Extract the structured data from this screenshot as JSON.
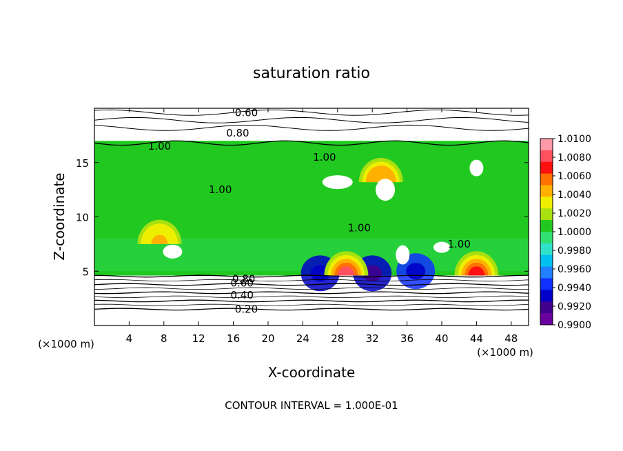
{
  "chart_data": {
    "type": "heatmap",
    "title": "saturation ratio",
    "xlabel": "X-coordinate",
    "ylabel": "Z-coordinate",
    "x_unit": "(×1000 m)",
    "y_unit": "(×1000 m)",
    "xlim": [
      0,
      50
    ],
    "ylim": [
      0,
      20
    ],
    "x_ticks": [
      "4",
      "8",
      "12",
      "16",
      "20",
      "24",
      "28",
      "32",
      "36",
      "40",
      "44",
      "48"
    ],
    "y_ticks": [
      "5",
      "10",
      "15"
    ],
    "footer": "CONTOUR INTERVAL = 1.000E-01",
    "colorbar": {
      "min": 0.99,
      "max": 1.01,
      "labels": [
        "1.0100",
        "1.0080",
        "1.0060",
        "1.0040",
        "1.0020",
        "1.0000",
        "0.9980",
        "0.9960",
        "0.9940",
        "0.9920",
        "0.9900"
      ],
      "colors": [
        "#ff9aa8",
        "#ff5060",
        "#ff1010",
        "#ff7000",
        "#ffb000",
        "#eeee00",
        "#a8e010",
        "#20c820",
        "#30e070",
        "#30e0c8",
        "#00c0f0",
        "#2080ff",
        "#1030ff",
        "#0000c8",
        "#40008c",
        "#6a00a0"
      ]
    },
    "contour_levels": [
      0.2,
      0.4,
      0.6,
      0.8,
      1.0
    ],
    "contour_labels": [
      "0.60",
      "0.80",
      "1.00",
      "1.00",
      "1.00",
      "1.00",
      "1.00",
      "0.80",
      "0.60",
      "0.40",
      "0.20"
    ],
    "contour_label_positions": [
      [
        17.5,
        19.6
      ],
      [
        16.5,
        17.7
      ],
      [
        7.5,
        16.5
      ],
      [
        14.5,
        12.5
      ],
      [
        26.5,
        15.5
      ],
      [
        30.5,
        9.0
      ],
      [
        42.0,
        7.5
      ],
      [
        17.2,
        4.3
      ],
      [
        17.0,
        3.9
      ],
      [
        17.0,
        2.8
      ],
      [
        17.5,
        1.5
      ]
    ],
    "hot_spots": [
      {
        "x": 29,
        "z": 4.6,
        "value": 1.0075
      },
      {
        "x": 44,
        "z": 4.6,
        "value": 1.007
      },
      {
        "x": 7.5,
        "z": 7.5,
        "value": 1.004
      },
      {
        "x": 33,
        "z": 13.2,
        "value": 1.005
      }
    ],
    "cold_spots": [
      {
        "x": 32,
        "z": 4.8,
        "value": 0.9925
      },
      {
        "x": 26,
        "z": 4.8,
        "value": 0.9935
      },
      {
        "x": 37,
        "z": 5.0,
        "value": 0.994
      }
    ]
  }
}
